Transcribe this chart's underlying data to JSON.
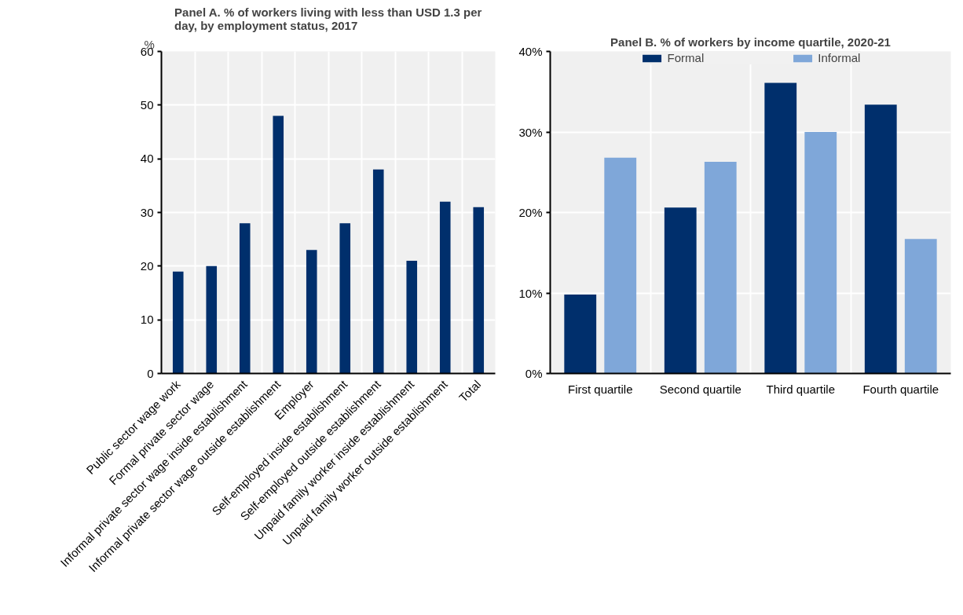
{
  "chart_data": [
    {
      "type": "bar",
      "title": "Panel A. % of workers living with less than USD 1.3 per day, by employment status, 2017",
      "ylabel": "%",
      "categories": [
        "Public sector wage work",
        "Formal private sector wage",
        "Informal private sector wage inside establishment",
        "Informal private sector wage outside establishment",
        "Employer",
        "Self-employed inside establishment",
        "Self-employed outside establishment",
        "Unpaid family worker inside establishment",
        "Unpaid family worker outside establishment",
        "Total"
      ],
      "series": [
        {
          "color": "#002f6c",
          "values": [
            19,
            20,
            28,
            48,
            23,
            28,
            38,
            21,
            32,
            31
          ]
        }
      ],
      "ylim": [
        0,
        60
      ],
      "yticks": [
        0,
        10,
        20,
        30,
        40,
        50,
        60
      ],
      "grid": true,
      "legend": false
    },
    {
      "type": "bar",
      "title": "Panel B. % of workers by income quartile, 2020-21",
      "categories": [
        "First quartile",
        "Second quartile",
        "Third quartile",
        "Fourth quartile"
      ],
      "series": [
        {
          "name": "Formal",
          "color": "#002f6c",
          "values": [
            9.8,
            20.6,
            36.1,
            33.4
          ]
        },
        {
          "name": "Informal",
          "color": "#7fa7d9",
          "values": [
            26.8,
            26.3,
            30.0,
            16.7
          ]
        }
      ],
      "ylim": [
        0,
        40
      ],
      "yticks": [
        {
          "value": 0,
          "label": "0%"
        },
        {
          "value": 10,
          "label": "10%"
        },
        {
          "value": 20,
          "label": "20%"
        },
        {
          "value": 30,
          "label": "30%"
        },
        {
          "value": 40,
          "label": "40%"
        }
      ],
      "grid": true,
      "legend": "top"
    }
  ]
}
